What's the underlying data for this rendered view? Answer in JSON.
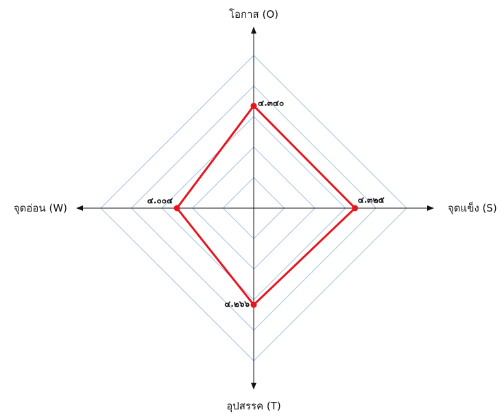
{
  "chart_data": {
    "type": "radar",
    "title": "",
    "axes": [
      {
        "label": "โอกาส (O)",
        "direction": "up",
        "value": 4.34,
        "value_label": "๔.๓๔๐"
      },
      {
        "label": "จุดแข็ง (S)",
        "direction": "right",
        "value": 4.325,
        "value_label": "๔.๓๒๕"
      },
      {
        "label": "อุปสรรค (T)",
        "direction": "down",
        "value": 4.266,
        "value_label": "๔.๒๖๖"
      },
      {
        "label": "จุดอ่อน (W)",
        "direction": "left",
        "value": 4.004,
        "value_label": "๔.๐๐๔"
      }
    ],
    "scale": {
      "min": 3.0,
      "max": 5.0,
      "grid_step": 0.4
    },
    "grid": true,
    "colors": {
      "series": "#e8141c",
      "grid": "#9fc0e2",
      "axis": "#111111"
    }
  }
}
